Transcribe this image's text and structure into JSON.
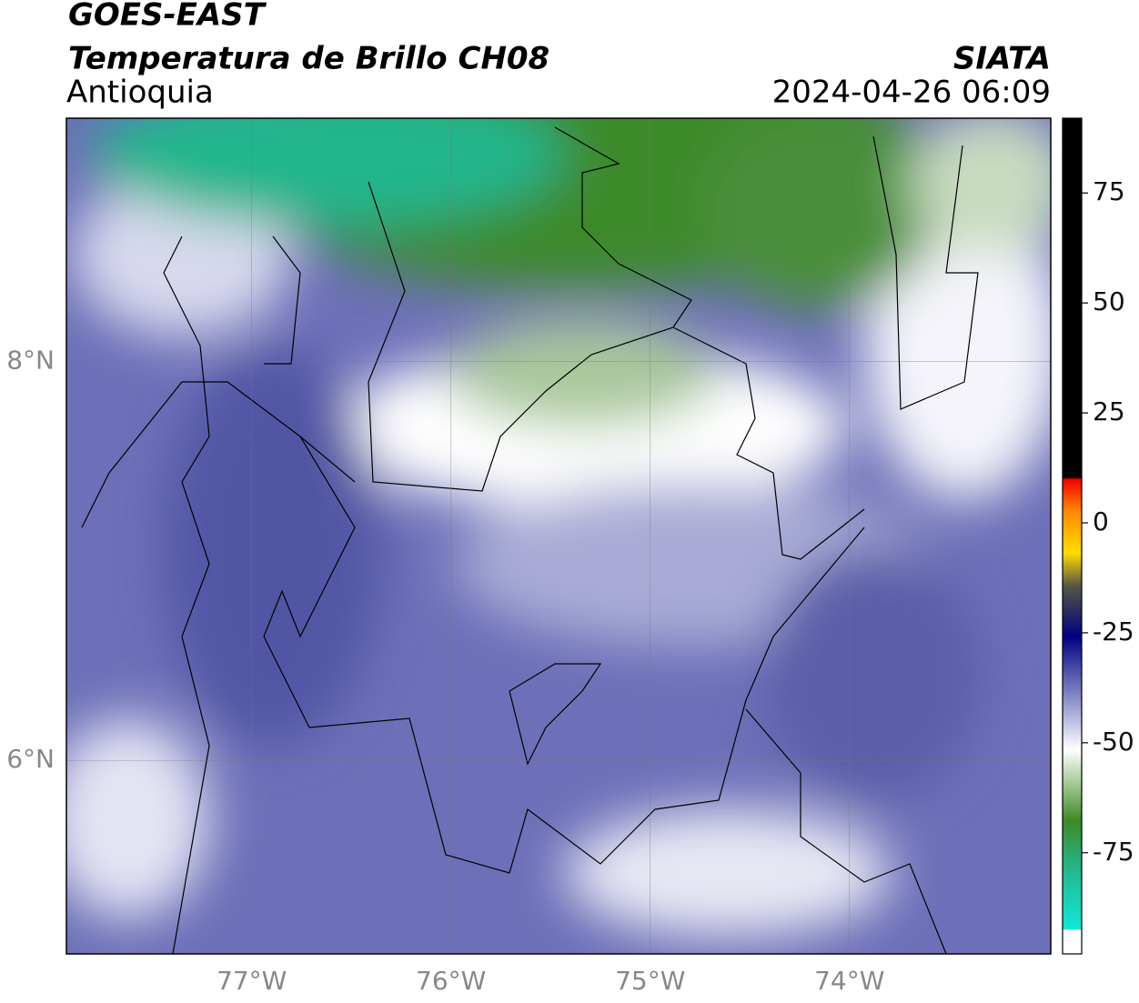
{
  "header": {
    "title": "GOES-EAST",
    "subtitle": "Temperatura de Brillo CH08",
    "region": "Antioquia",
    "source": "SIATA",
    "datetime": "2024-04-26 06:09"
  },
  "map": {
    "lon_range": [
      -77.93,
      -72.99
    ],
    "lat_range": [
      5.03,
      9.22
    ],
    "lon_ticks": [
      {
        "value": -77,
        "label": "77°W"
      },
      {
        "value": -76,
        "label": "76°W"
      },
      {
        "value": -75,
        "label": "75°W"
      },
      {
        "value": -74,
        "label": "74°W"
      }
    ],
    "lat_ticks": [
      {
        "value": 8,
        "label": "8°N"
      },
      {
        "value": 6,
        "label": "6°N"
      }
    ]
  },
  "colorbar": {
    "range": [
      -98,
      92
    ],
    "ticks": [
      75,
      50,
      25,
      0,
      -25,
      -50,
      -75
    ]
  }
}
